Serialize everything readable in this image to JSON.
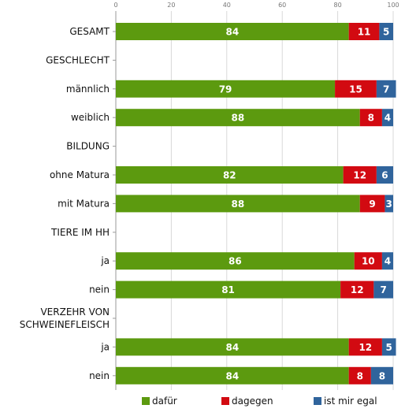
{
  "chart_data": {
    "type": "bar",
    "orientation": "horizontal",
    "stacked": true,
    "xlim": [
      0,
      100
    ],
    "xticks": [
      0,
      20,
      40,
      60,
      80,
      100
    ],
    "grid": true,
    "legend_position": "bottom",
    "categories": [
      {
        "label": "GESAMT",
        "values": [
          84,
          11,
          5
        ]
      },
      {
        "label": "GESCHLECHT",
        "header": true
      },
      {
        "label": "männlich",
        "values": [
          79,
          15,
          7
        ]
      },
      {
        "label": "weiblich",
        "values": [
          88,
          8,
          4
        ]
      },
      {
        "label": "BILDUNG",
        "header": true
      },
      {
        "label": "ohne Matura",
        "values": [
          82,
          12,
          6
        ]
      },
      {
        "label": "mit Matura",
        "values": [
          88,
          9,
          3
        ]
      },
      {
        "label": "TIERE IM HH",
        "header": true
      },
      {
        "label": "ja",
        "values": [
          86,
          10,
          4
        ]
      },
      {
        "label": "nein",
        "values": [
          81,
          12,
          7
        ]
      },
      {
        "label": [
          "VERZEHR VON",
          "SCHWEINEFLEISCH"
        ],
        "header": true
      },
      {
        "label": "ja",
        "values": [
          84,
          12,
          5
        ]
      },
      {
        "label": "nein",
        "values": [
          84,
          8,
          8
        ]
      }
    ],
    "series": [
      {
        "name": "dafür",
        "color": "#5c9a0f"
      },
      {
        "name": "dagegen",
        "color": "#d20a11"
      },
      {
        "name": "ist mir egal",
        "color": "#30649c"
      }
    ]
  }
}
